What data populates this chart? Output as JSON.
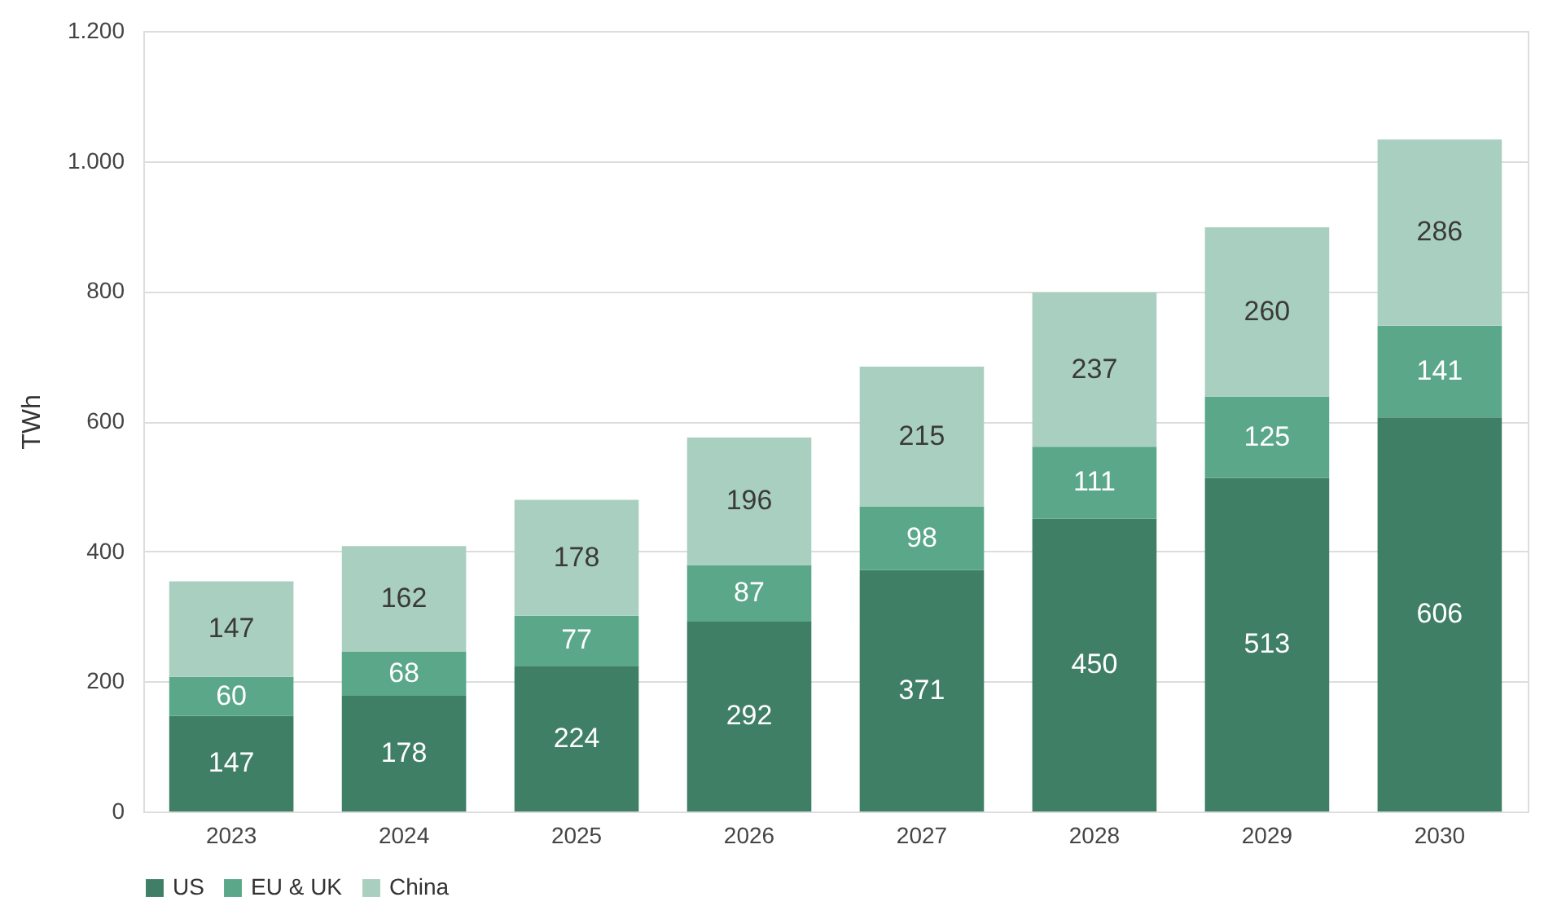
{
  "chart_data": {
    "type": "bar",
    "stacked": true,
    "ylabel": "TWh",
    "categories": [
      "2023",
      "2024",
      "2025",
      "2026",
      "2027",
      "2028",
      "2029",
      "2030"
    ],
    "series": [
      {
        "name": "US",
        "color": "#3f7f65",
        "values": [
          147,
          178,
          224,
          292,
          371,
          450,
          513,
          606
        ]
      },
      {
        "name": "EU & UK",
        "color": "#5aa889",
        "values": [
          60,
          68,
          77,
          87,
          98,
          111,
          125,
          141
        ]
      },
      {
        "name": "China",
        "color": "#a9cfc0",
        "values": [
          147,
          162,
          178,
          196,
          215,
          237,
          260,
          286
        ]
      }
    ],
    "ylim": [
      0,
      1200
    ],
    "yticks": [
      0,
      200,
      400,
      600,
      800,
      {
        "value": 1000,
        "label": "1.000"
      },
      {
        "value": 1200,
        "label": "1.200"
      }
    ],
    "grid": "y",
    "legend": "bottom",
    "data_labels": true
  }
}
